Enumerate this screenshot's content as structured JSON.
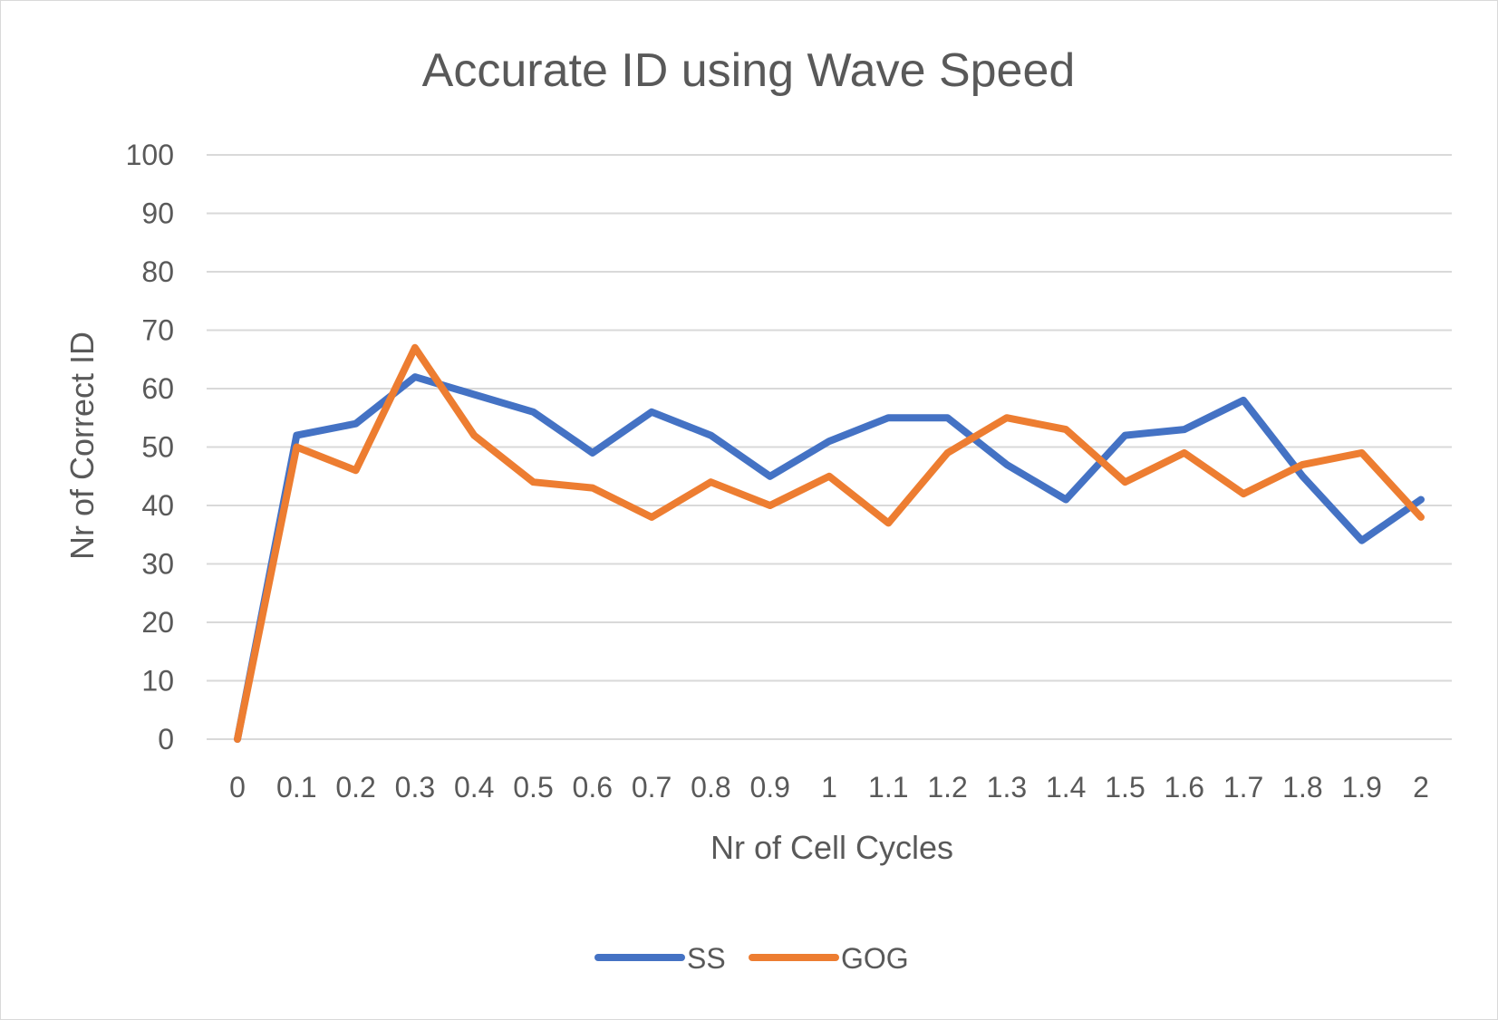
{
  "chart_data": {
    "type": "line",
    "title": "Accurate ID using Wave Speed",
    "xlabel": "Nr of Cell Cycles",
    "ylabel": "Nr of Correct ID",
    "categories": [
      "0",
      "0.1",
      "0.2",
      "0.3",
      "0.4",
      "0.5",
      "0.6",
      "0.7",
      "0.8",
      "0.9",
      "1",
      "1.1",
      "1.2",
      "1.3",
      "1.4",
      "1.5",
      "1.6",
      "1.7",
      "1.8",
      "1.9",
      "2"
    ],
    "ylim": [
      0,
      100
    ],
    "yticks": [
      "0",
      "10",
      "20",
      "30",
      "40",
      "50",
      "60",
      "70",
      "80",
      "90",
      "100"
    ],
    "grid": true,
    "legend_position": "bottom",
    "series": [
      {
        "name": "SS",
        "color": "#4472c4",
        "values": [
          0,
          52,
          54,
          62,
          59,
          56,
          49,
          56,
          52,
          45,
          51,
          55,
          55,
          47,
          41,
          52,
          53,
          58,
          45,
          34,
          41
        ]
      },
      {
        "name": "GOG",
        "color": "#ed7d31",
        "values": [
          0,
          50,
          46,
          67,
          52,
          44,
          43,
          38,
          44,
          40,
          45,
          37,
          49,
          55,
          53,
          44,
          49,
          42,
          47,
          49,
          38
        ]
      }
    ]
  }
}
